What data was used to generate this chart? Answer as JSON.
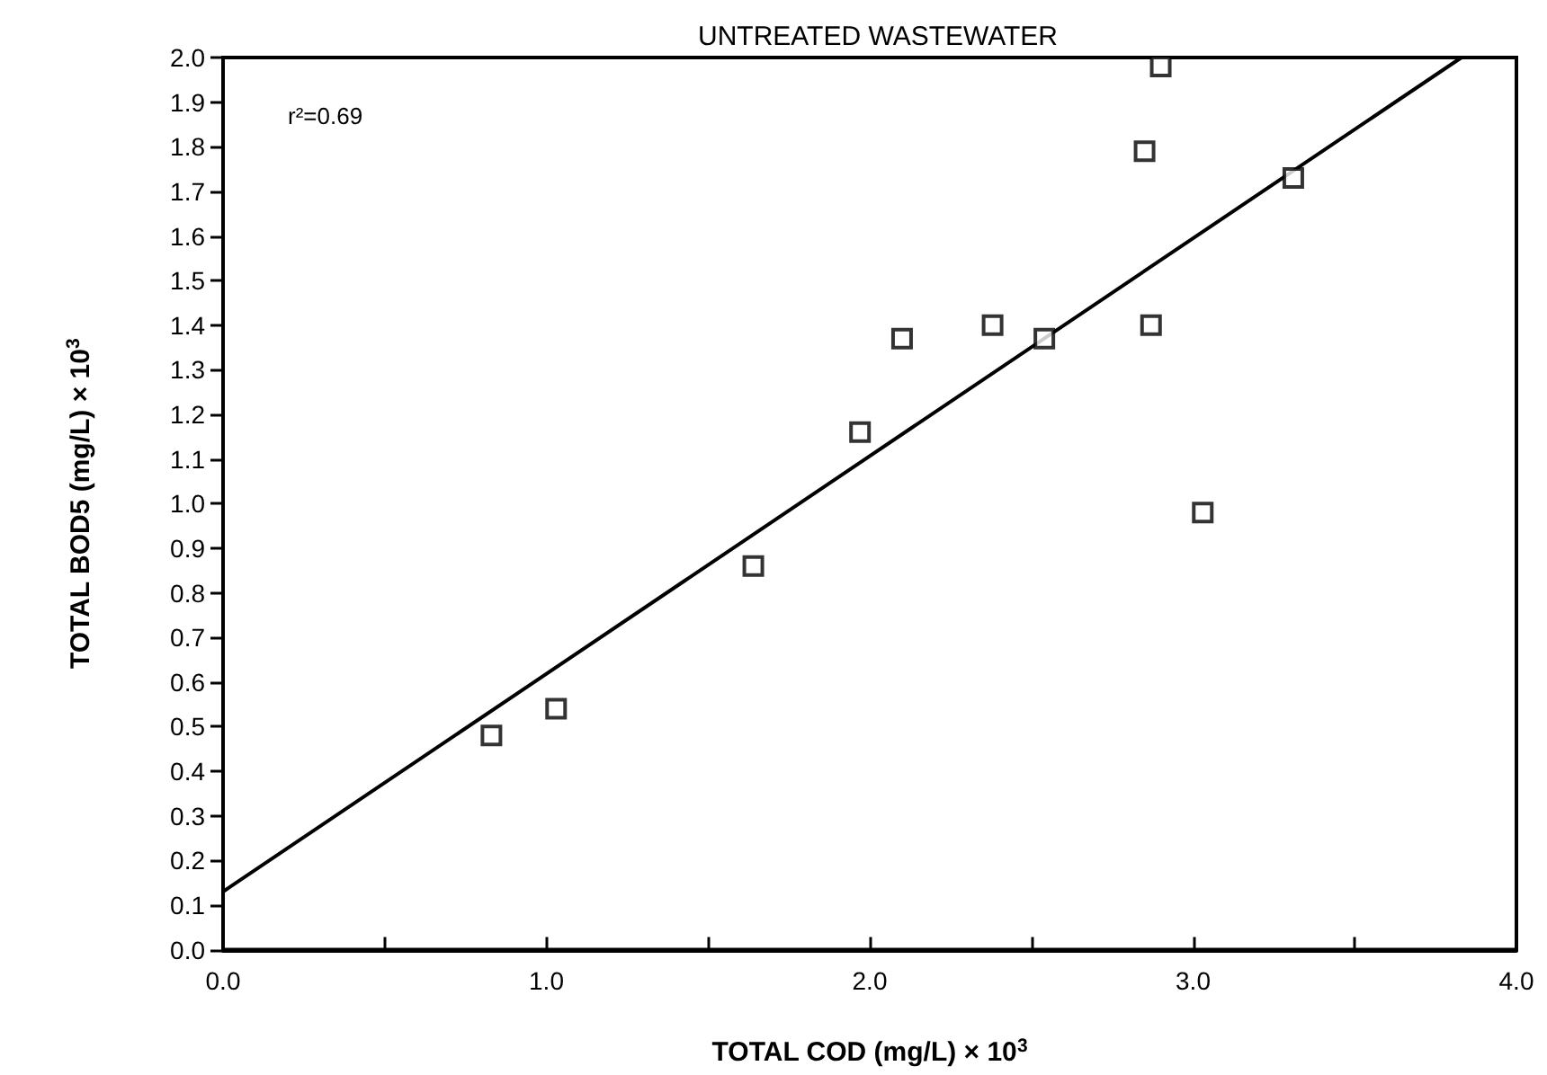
{
  "chart_data": {
    "type": "scatter",
    "title": "UNTREATED WASTEWATER",
    "xlabel": "TOTAL COD (mg/L) × 10$^{3}$",
    "ylabel": "TOTAL BOD5 (mg/L) × 10$^{3}$",
    "annotations": [
      "r²=0.69"
    ],
    "series": [
      {
        "color": "#000000",
        "x": [
          0.83,
          1.03,
          1.64,
          1.97,
          2.1,
          2.38,
          2.54,
          2.85,
          2.87,
          2.9,
          3.03,
          3.31
        ],
        "values": [
          0.48,
          0.54,
          0.86,
          1.16,
          1.37,
          1.4,
          1.37,
          1.79,
          1.4,
          1.98,
          0.98,
          1.73
        ]
      },
      {
        "type": "line",
        "color": "#000000",
        "marker": "none",
        "x": [
          0,
          3.83
        ],
        "values": [
          0.13,
          2.0
        ]
      }
    ],
    "marker": "square",
    "grid": false,
    "xlim": [
      0,
      4
    ],
    "xticks": [
      {
        "value": 0,
        "label": "0.0"
      },
      {
        "value": 0.5,
        "label": null
      },
      {
        "value": 1,
        "label": "1.0"
      },
      {
        "value": 1.5,
        "label": null
      },
      {
        "value": 2,
        "label": "2.0"
      },
      {
        "value": 2.5,
        "label": null
      },
      {
        "value": 3,
        "label": "3.0"
      },
      {
        "value": 3.5,
        "label": null
      },
      {
        "value": 4,
        "label": "4.0"
      }
    ],
    "ylim": [
      0,
      2
    ],
    "yticks": [
      {
        "value": 0,
        "label": "0.0"
      },
      {
        "value": 0.1,
        "label": "0.1"
      },
      {
        "value": 0.2,
        "label": "0.2"
      },
      {
        "value": 0.3,
        "label": "0.3"
      },
      {
        "value": 0.4,
        "label": "0.4"
      },
      {
        "value": 0.5,
        "label": "0.5"
      },
      {
        "value": 0.6,
        "label": "0.6"
      },
      {
        "value": 0.7,
        "label": "0.7"
      },
      {
        "value": 0.8,
        "label": "0.8"
      },
      {
        "value": 0.9,
        "label": "0.9"
      },
      {
        "value": 1,
        "label": "1.0"
      },
      {
        "value": 1.1,
        "label": "1.1"
      },
      {
        "value": 1.2,
        "label": "1.2"
      },
      {
        "value": 1.3,
        "label": "1.3"
      },
      {
        "value": 1.4,
        "label": "1.4"
      },
      {
        "value": 1.5,
        "label": "1.5"
      },
      {
        "value": 1.6,
        "label": "1.6"
      },
      {
        "value": 1.7,
        "label": "1.7"
      },
      {
        "value": 1.8,
        "label": "1.8"
      },
      {
        "value": 1.9,
        "label": "1.9"
      },
      {
        "value": 2,
        "label": "2.0"
      }
    ]
  }
}
